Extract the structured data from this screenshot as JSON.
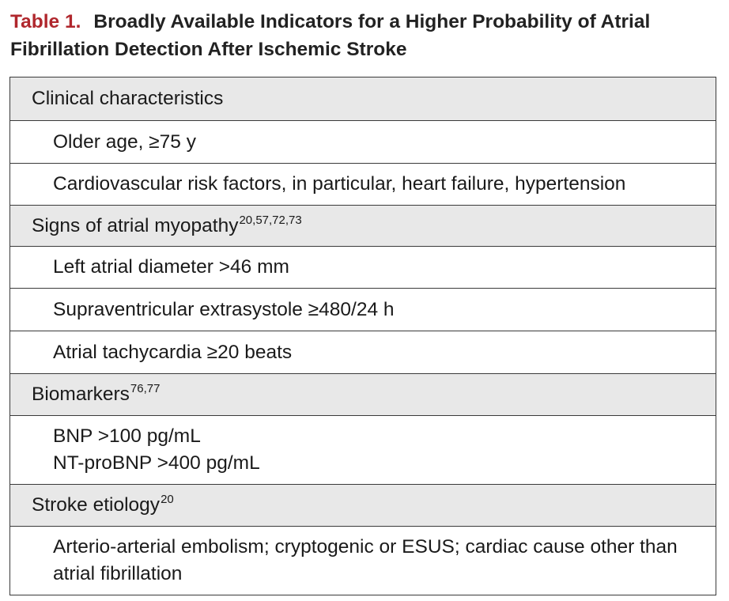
{
  "caption": {
    "label": "Table 1.",
    "line1": "Broadly Available Indicators for a Higher Probability of Atrial",
    "line2": "Fibrillation Detection After Ischemic Stroke"
  },
  "rows": [
    {
      "type": "section",
      "text": "Clinical characteristics",
      "sup": ""
    },
    {
      "type": "item",
      "line1": "Older age, ≥75 y"
    },
    {
      "type": "item",
      "line1": "Cardiovascular risk factors, in particular, heart failure, hypertension"
    },
    {
      "type": "section",
      "text": "Signs of atrial myopathy",
      "sup": "20,57,72,73"
    },
    {
      "type": "item",
      "line1": "Left atrial diameter >46 mm"
    },
    {
      "type": "item",
      "line1": "Supraventricular extrasystole ≥480/24 h"
    },
    {
      "type": "item",
      "line1": "Atrial tachycardia ≥20 beats"
    },
    {
      "type": "section",
      "text": "Biomarkers",
      "sup": "76,77"
    },
    {
      "type": "item",
      "line1": "BNP >100 pg/mL",
      "line2": "NT-proBNP >400 pg/mL"
    },
    {
      "type": "section",
      "text": "Stroke etiology",
      "sup": "20"
    },
    {
      "type": "item",
      "line1": "Arterio-arterial embolism; cryptogenic or ESUS; cardiac cause other than",
      "line2": "atrial fibrillation"
    }
  ]
}
